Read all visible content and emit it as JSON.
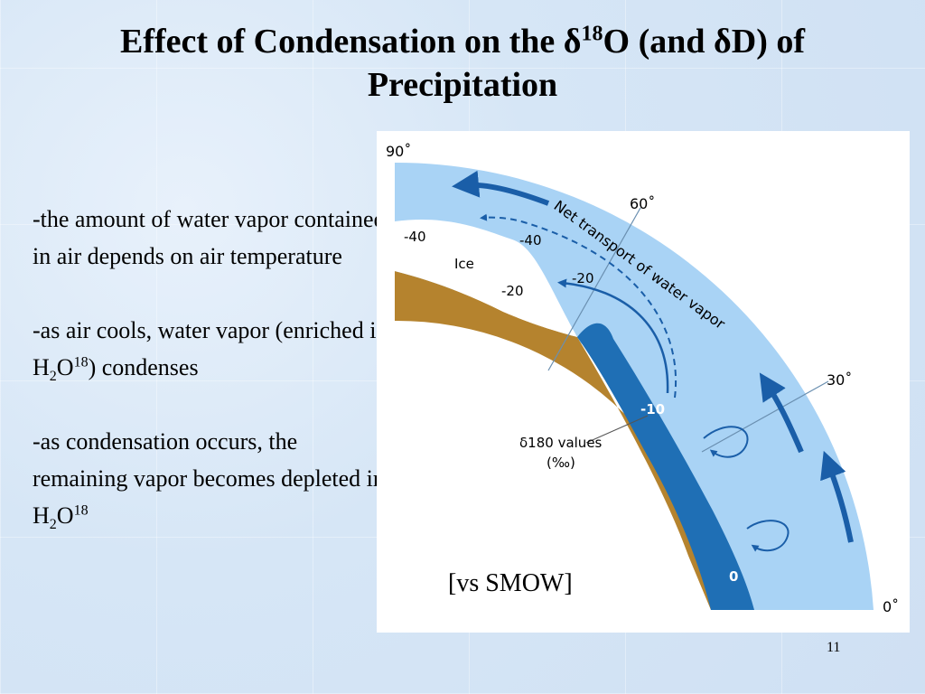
{
  "title": {
    "part1": "Effect of Condensation on the ",
    "delta1": "δ",
    "sup1": "18",
    "part2": "O (and ",
    "delta2": "δ",
    "part3": "D) of",
    "line2": "Precipitation"
  },
  "bullets": [
    {
      "text": "-the amount of water vapor contained in air depends on air temperature"
    },
    {
      "pre": "-as air cools, water vapor (enriched in H",
      "sub": "2",
      "mid": "O",
      "sup": "18",
      "post": ") condenses"
    },
    {
      "pre": "-as condensation occurs, the remaining vapor becomes depleted in H",
      "sub": "2",
      "mid": "O",
      "sup": "18"
    }
  ],
  "figure": {
    "latitude_labels": {
      "lat90": "90˚",
      "lat60": "60˚",
      "lat30": "30˚",
      "lat0": "0˚"
    },
    "transport_label": "Net transport of water vapor",
    "ice_label": "Ice",
    "values": {
      "v_ice_outer": "-40",
      "v_ice_inner": "-20",
      "v_vapor_outer": "-40",
      "v_vapor_inner": "-20",
      "v_ocean_mid": "-10",
      "v_ocean_eq": "0"
    },
    "legend_line1": "δ180 values",
    "legend_line2": "(‰)",
    "colors": {
      "atmosphere": "#a9d3f5",
      "ocean": "#1f6fb5",
      "land": "#b5832e",
      "arrow": "#1a5ea8"
    }
  },
  "vs_smow": "[vs SMOW]",
  "page_number": "11"
}
